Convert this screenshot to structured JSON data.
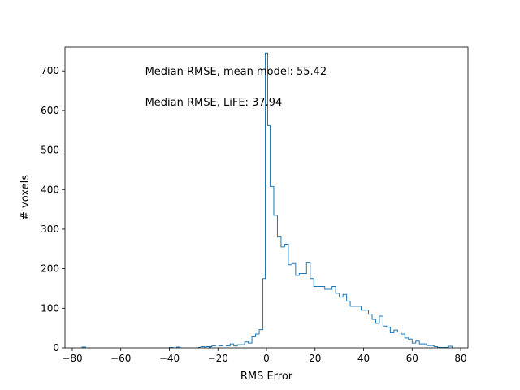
{
  "chart_data": {
    "type": "histogram",
    "title": "",
    "xlabel": "RMS Error",
    "ylabel": "# voxels",
    "xlim": [
      -83,
      83
    ],
    "ylim": [
      0,
      760
    ],
    "xticks": [
      -80,
      -60,
      -40,
      -20,
      0,
      20,
      40,
      60,
      80
    ],
    "yticks": [
      0,
      100,
      200,
      300,
      400,
      500,
      600,
      700
    ],
    "bin_width": 1.5,
    "series": [
      {
        "color": "#1f77b4",
        "bins": [
          [
            -76,
            2
          ],
          [
            -40,
            1
          ],
          [
            -37,
            2
          ],
          [
            -28,
            1
          ],
          [
            -27,
            3
          ],
          [
            -25,
            3
          ],
          [
            -23,
            3
          ],
          [
            -22.5,
            5
          ],
          [
            -21,
            7
          ],
          [
            -19.5,
            5
          ],
          [
            -18,
            7
          ],
          [
            -16.5,
            5
          ],
          [
            -15,
            10
          ],
          [
            -13.5,
            5
          ],
          [
            -12,
            8
          ],
          [
            -10.5,
            8
          ],
          [
            -9,
            15
          ],
          [
            -7.5,
            12
          ],
          [
            -6,
            28
          ],
          [
            -4.5,
            35
          ],
          [
            -3,
            46
          ],
          [
            -1.5,
            175
          ],
          [
            -0.5,
            745
          ],
          [
            0.5,
            562
          ],
          [
            1.5,
            408
          ],
          [
            3,
            335
          ],
          [
            4.5,
            280
          ],
          [
            6,
            255
          ],
          [
            7.5,
            262
          ],
          [
            9,
            210
          ],
          [
            10.5,
            213
          ],
          [
            12,
            183
          ],
          [
            13.5,
            188
          ],
          [
            15,
            188
          ],
          [
            16.5,
            215
          ],
          [
            18,
            175
          ],
          [
            19.5,
            155
          ],
          [
            21,
            155
          ],
          [
            22.5,
            155
          ],
          [
            24,
            148
          ],
          [
            25.5,
            148
          ],
          [
            27,
            155
          ],
          [
            28.5,
            138
          ],
          [
            30,
            128
          ],
          [
            31.5,
            135
          ],
          [
            33,
            118
          ],
          [
            34.5,
            105
          ],
          [
            36,
            105
          ],
          [
            37.5,
            105
          ],
          [
            39,
            95
          ],
          [
            40.5,
            95
          ],
          [
            42,
            85
          ],
          [
            43.5,
            72
          ],
          [
            45,
            62
          ],
          [
            46.5,
            80
          ],
          [
            48,
            55
          ],
          [
            49.5,
            52
          ],
          [
            51,
            38
          ],
          [
            52.5,
            45
          ],
          [
            54,
            40
          ],
          [
            55.5,
            35
          ],
          [
            57,
            25
          ],
          [
            58.5,
            22
          ],
          [
            60,
            12
          ],
          [
            61.5,
            17
          ],
          [
            63,
            10
          ],
          [
            64.5,
            10
          ],
          [
            66,
            6
          ],
          [
            67.5,
            6
          ],
          [
            69,
            3
          ],
          [
            70.5,
            1
          ],
          [
            72,
            1
          ],
          [
            73.5,
            1
          ],
          [
            75,
            4
          ]
        ]
      }
    ],
    "annotations": [
      {
        "text": "Median RMSE, mean model: 55.42",
        "x": -50,
        "y": 690
      },
      {
        "text": "Median RMSE, LiFE: 37.94",
        "x": -50,
        "y": 612
      }
    ]
  }
}
